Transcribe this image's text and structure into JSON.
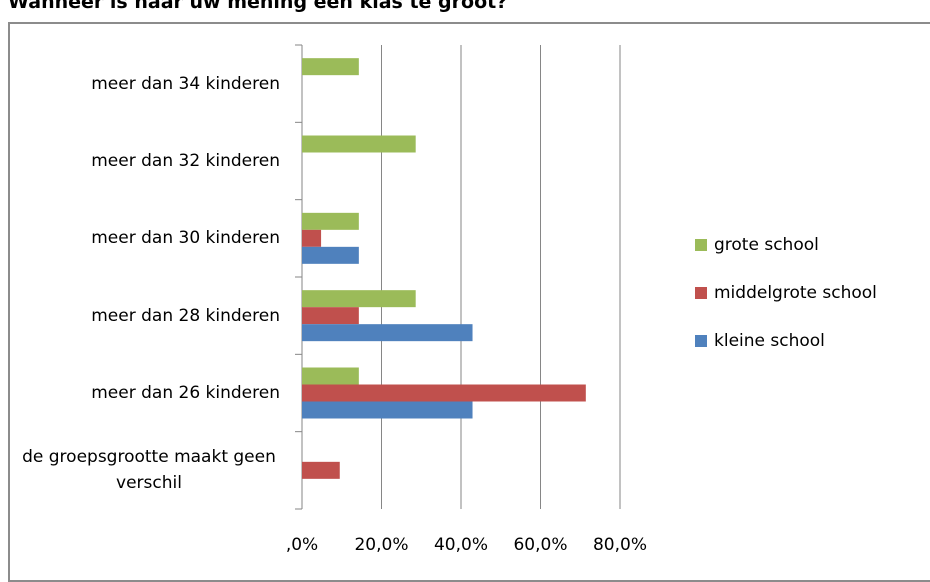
{
  "chart_data": {
    "type": "hbar",
    "title": "Wanneer is naar uw mening een klas te groot?",
    "categories": [
      "meer dan 34 kinderen",
      "meer dan 32 kinderen",
      "meer dan 30 kinderen",
      "meer dan 28 kinderen",
      "meer dan 26 kinderen",
      "de groepsgrootte maakt geen verschil"
    ],
    "series": [
      {
        "name": "grote school",
        "color": "#9bbb59",
        "values": [
          14.3,
          28.6,
          14.3,
          28.6,
          14.3,
          0
        ]
      },
      {
        "name": "middelgrote school",
        "color": "#c0504d",
        "values": [
          0,
          0,
          4.8,
          14.3,
          71.4,
          9.5
        ]
      },
      {
        "name": "kleine school",
        "color": "#4f81bd",
        "values": [
          0,
          0,
          14.3,
          42.9,
          42.9,
          0
        ]
      }
    ],
    "xlim": [
      0,
      80
    ],
    "xticks": [
      {
        "value": 0,
        "label": ",0%"
      },
      {
        "value": 20,
        "label": "20,0%"
      },
      {
        "value": 40,
        "label": "40,0%"
      },
      {
        "value": 60,
        "label": "60,0%"
      },
      {
        "value": 80,
        "label": "80,0%"
      }
    ],
    "grid": true,
    "legend": "right"
  }
}
